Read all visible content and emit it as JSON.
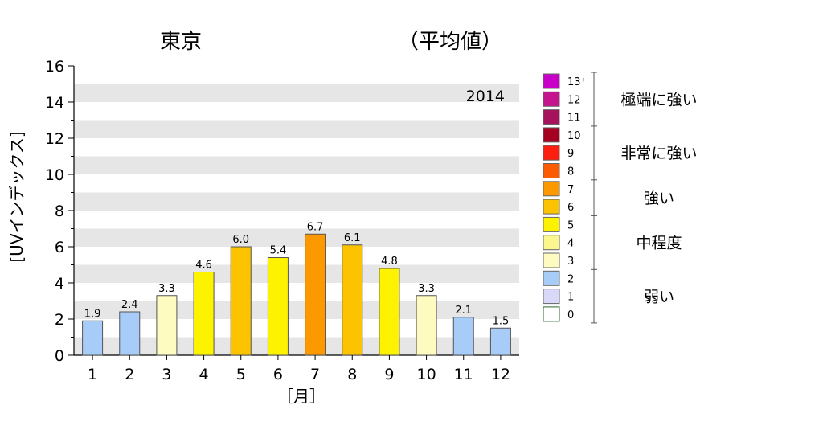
{
  "chart_data": {
    "type": "bar",
    "title": "東京",
    "subtitle": "（平均値）",
    "year_label": "2014",
    "xlabel": "［月］",
    "ylabel": "[UVインデックス]",
    "ylim": [
      0,
      16
    ],
    "yticks": [
      0,
      2,
      4,
      6,
      8,
      10,
      12,
      14,
      16
    ],
    "grid": "horizontal bands",
    "categories": [
      "1",
      "2",
      "3",
      "4",
      "5",
      "6",
      "7",
      "8",
      "9",
      "10",
      "11",
      "12"
    ],
    "values": [
      1.9,
      2.4,
      3.3,
      4.6,
      6.0,
      5.4,
      6.7,
      6.1,
      4.8,
      3.3,
      2.1,
      1.5
    ],
    "value_labels": [
      "1.9",
      "2.4",
      "3.3",
      "4.6",
      "6.0",
      "5.4",
      "6.7",
      "6.1",
      "4.8",
      "3.3",
      "2.1",
      "1.5"
    ],
    "bar_colors": [
      "#a7ccf7",
      "#a7ccf7",
      "#fdfbc0",
      "#fdf200",
      "#fcc300",
      "#fdf200",
      "#fc9800",
      "#fcc300",
      "#fdf200",
      "#fdfbc0",
      "#a7ccf7",
      "#a7ccf7"
    ],
    "legend": {
      "placement": "right",
      "levels": [
        {
          "label": "13⁺",
          "color": "#c800c8"
        },
        {
          "label": "12",
          "color": "#c4158f"
        },
        {
          "label": "11",
          "color": "#a6125c"
        },
        {
          "label": "10",
          "color": "#a50022"
        },
        {
          "label": "9",
          "color": "#fc1e0f"
        },
        {
          "label": "8",
          "color": "#fb5c00"
        },
        {
          "label": "7",
          "color": "#fc9800"
        },
        {
          "label": "6",
          "color": "#fcc300"
        },
        {
          "label": "5",
          "color": "#fdf200"
        },
        {
          "label": "4",
          "color": "#fbf68e"
        },
        {
          "label": "3",
          "color": "#fdfbc0"
        },
        {
          "label": "2",
          "color": "#a7ccf7"
        },
        {
          "label": "1",
          "color": "#d8d8f8"
        },
        {
          "label": "0",
          "color": "#ffffff"
        }
      ],
      "categories": [
        {
          "label": "極端に強い",
          "from": 11,
          "to": 13
        },
        {
          "label": "非常に強い",
          "from": 8,
          "to": 10
        },
        {
          "label": "強い",
          "from": 6,
          "to": 7
        },
        {
          "label": "中程度",
          "from": 3,
          "to": 5
        },
        {
          "label": "弱い",
          "from": 0,
          "to": 2
        }
      ]
    }
  }
}
